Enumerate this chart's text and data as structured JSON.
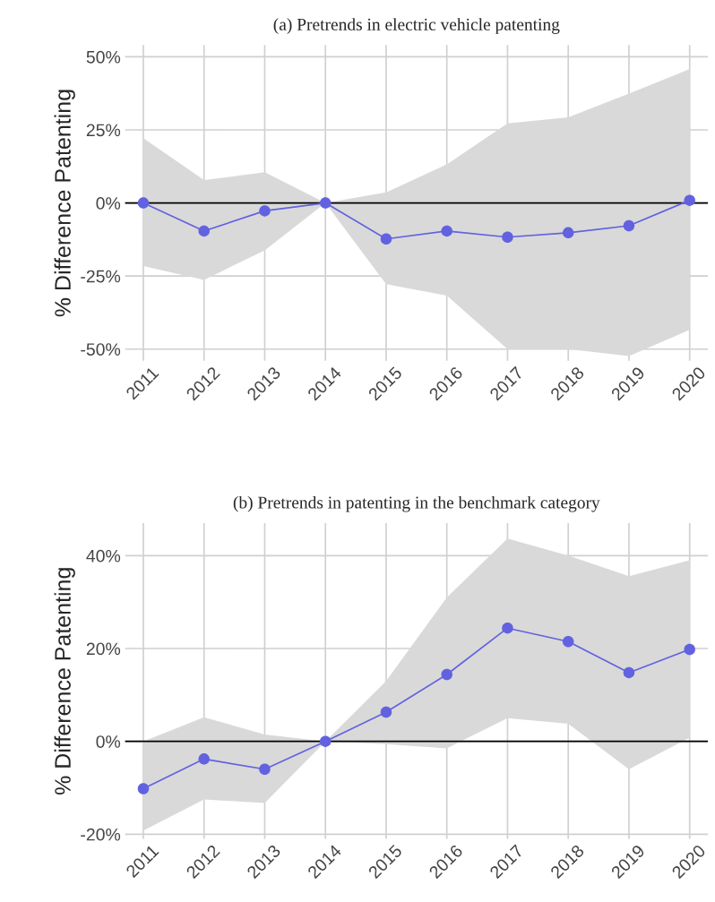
{
  "chart_data": [
    {
      "type": "line",
      "title": "(a) Pretrends in electric vehicle patenting",
      "ylabel": "% Difference Patenting",
      "categories": [
        "2011",
        "2012",
        "2013",
        "2014",
        "2015",
        "2016",
        "2017",
        "2018",
        "2019",
        "2020"
      ],
      "series": [
        {
          "color": "#6262e0",
          "values": [
            0,
            -9.6,
            -2.7,
            0,
            -12.3,
            -9.6,
            -11.7,
            -10.2,
            -7.8,
            0.9
          ],
          "lower": [
            -21.6,
            -26.3,
            -16.2,
            0,
            -27.8,
            -31.7,
            -50,
            -50,
            -52.4,
            -43.4
          ],
          "upper": [
            22.2,
            7.8,
            10.5,
            0,
            3.6,
            13.2,
            27.2,
            29.3,
            37.4,
            45.8
          ]
        }
      ],
      "ylim": [
        -54,
        54
      ],
      "yticks": [
        {
          "value": -50,
          "label": "-50%"
        },
        {
          "value": -25,
          "label": "-25%"
        },
        {
          "value": 0,
          "label": "0%"
        },
        {
          "value": 25,
          "label": "25%"
        },
        {
          "value": 50,
          "label": "50%"
        }
      ],
      "ref_lines": [
        {
          "axis": "y",
          "value": 0,
          "color": "#000000"
        }
      ],
      "grid": true,
      "marker": "circle",
      "line_style": "solid",
      "legend": false
    },
    {
      "type": "line",
      "title": "(b) Pretrends in patenting in the benchmark category",
      "ylabel": "% Difference Patenting",
      "categories": [
        "2011",
        "2012",
        "2013",
        "2014",
        "2015",
        "2016",
        "2017",
        "2018",
        "2019",
        "2020"
      ],
      "series": [
        {
          "color": "#6262e0",
          "values": [
            -10.2,
            -3.8,
            -6,
            0,
            6.3,
            14.4,
            24.4,
            21.5,
            14.8,
            19.8
          ],
          "lower": [
            -19.2,
            -12.5,
            -13.3,
            0,
            -0.6,
            -1.5,
            5,
            3.8,
            -6,
            0.8
          ],
          "upper": [
            0,
            5.2,
            1.5,
            0,
            13,
            31,
            43.7,
            40,
            35.6,
            39
          ]
        }
      ],
      "ylim": [
        -21,
        47
      ],
      "yticks": [
        {
          "value": -20,
          "label": "-20%"
        },
        {
          "value": 0,
          "label": "0%"
        },
        {
          "value": 20,
          "label": "20%"
        },
        {
          "value": 40,
          "label": "40%"
        }
      ],
      "ref_lines": [
        {
          "axis": "y",
          "value": 0,
          "color": "#000000"
        }
      ],
      "grid": true,
      "marker": "circle",
      "line_style": "solid",
      "legend": false
    }
  ]
}
